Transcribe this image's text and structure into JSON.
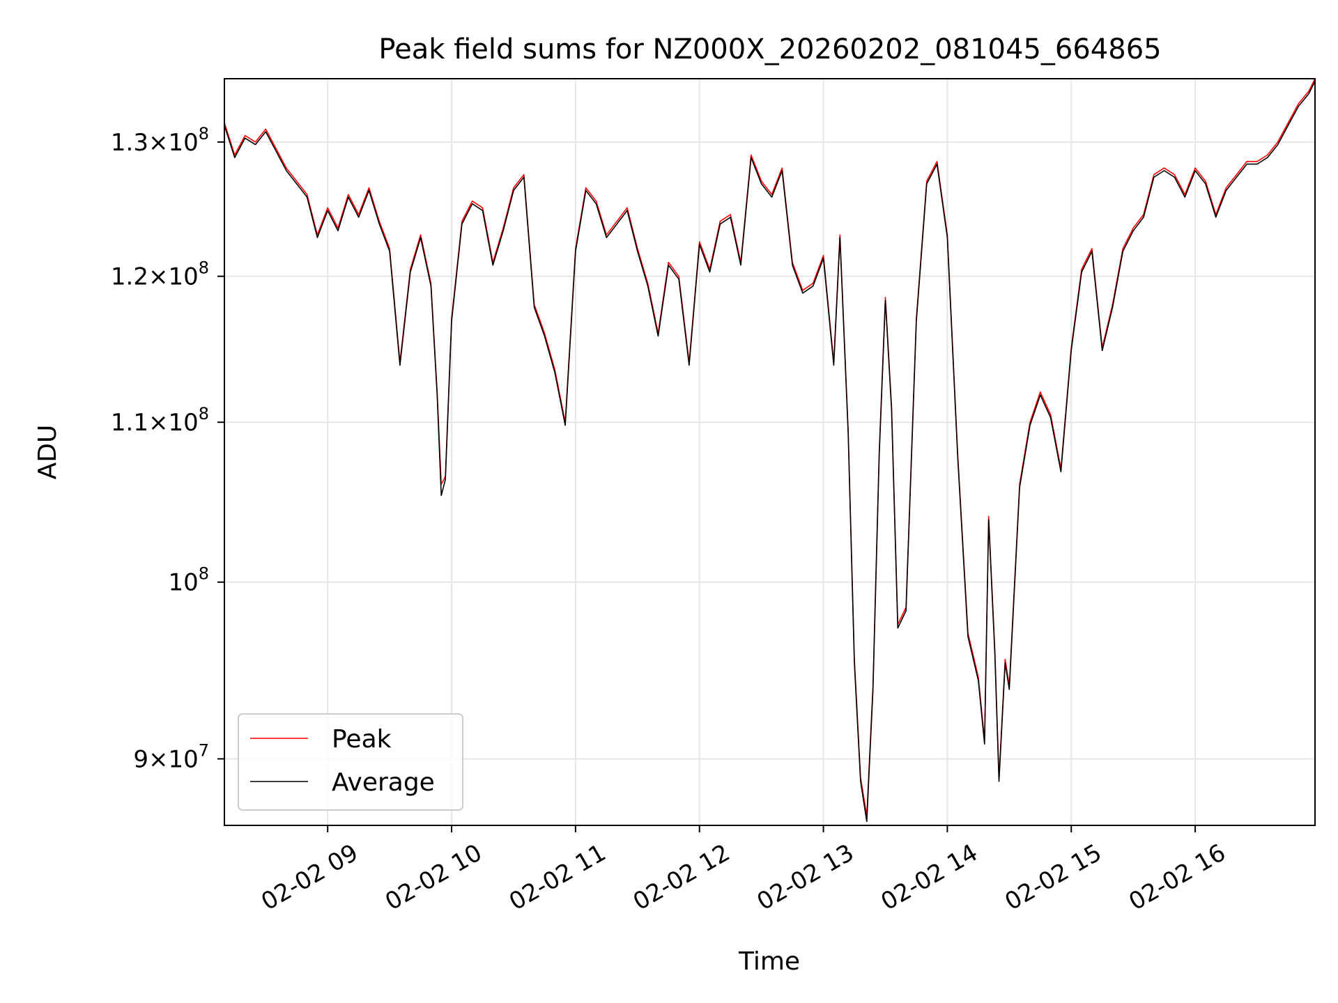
{
  "chart_data": {
    "type": "line",
    "title": "Peak field sums for NZ000X_20260202_081045_664865",
    "xlabel": "Time",
    "ylabel": "ADU",
    "yscale": "log",
    "xlim": [
      "02-02 08:10",
      "02-02 16:58"
    ],
    "ylim": [
      86500000,
      135000000
    ],
    "xticks": [
      "02-02 09",
      "02-02 10",
      "02-02 11",
      "02-02 12",
      "02-02 13",
      "02-02 14",
      "02-02 15",
      "02-02 16"
    ],
    "yticks": [
      {
        "value": 90000000,
        "mantissa": "9",
        "exponent": "7"
      },
      {
        "value": 100000000,
        "mantissa": "",
        "exponent": "8"
      },
      {
        "value": 110000000,
        "mantissa": "1.1",
        "exponent": "8"
      },
      {
        "value": 120000000,
        "mantissa": "1.2",
        "exponent": "8"
      },
      {
        "value": 130000000,
        "mantissa": "1.3",
        "exponent": "8"
      }
    ],
    "grid": true,
    "legend": {
      "position": "lower-left"
    },
    "colors": {
      "Peak": "#ff0000",
      "Average": "#000000"
    },
    "series": [
      {
        "name": "Peak",
        "color": "#ff0000",
        "x": [
          "02-02 08:10",
          "02-02 08:15",
          "02-02 08:20",
          "02-02 08:25",
          "02-02 08:30",
          "02-02 08:35",
          "02-02 08:40",
          "02-02 08:45",
          "02-02 08:50",
          "02-02 08:55",
          "02-02 09:00",
          "02-02 09:05",
          "02-02 09:10",
          "02-02 09:15",
          "02-02 09:20",
          "02-02 09:25",
          "02-02 09:30",
          "02-02 09:35",
          "02-02 09:40",
          "02-02 09:45",
          "02-02 09:50",
          "02-02 09:53",
          "02-02 09:55",
          "02-02 09:57",
          "02-02 10:00",
          "02-02 10:05",
          "02-02 10:10",
          "02-02 10:15",
          "02-02 10:20",
          "02-02 10:25",
          "02-02 10:30",
          "02-02 10:35",
          "02-02 10:40",
          "02-02 10:45",
          "02-02 10:50",
          "02-02 10:55",
          "02-02 11:00",
          "02-02 11:05",
          "02-02 11:10",
          "02-02 11:15",
          "02-02 11:20",
          "02-02 11:25",
          "02-02 11:30",
          "02-02 11:35",
          "02-02 11:40",
          "02-02 11:45",
          "02-02 11:50",
          "02-02 11:55",
          "02-02 12:00",
          "02-02 12:05",
          "02-02 12:10",
          "02-02 12:15",
          "02-02 12:20",
          "02-02 12:25",
          "02-02 12:30",
          "02-02 12:35",
          "02-02 12:40",
          "02-02 12:45",
          "02-02 12:50",
          "02-02 12:55",
          "02-02 13:00",
          "02-02 13:05",
          "02-02 13:08",
          "02-02 13:12",
          "02-02 13:15",
          "02-02 13:18",
          "02-02 13:21",
          "02-02 13:24",
          "02-02 13:27",
          "02-02 13:30",
          "02-02 13:33",
          "02-02 13:36",
          "02-02 13:40",
          "02-02 13:45",
          "02-02 13:50",
          "02-02 13:55",
          "02-02 14:00",
          "02-02 14:05",
          "02-02 14:10",
          "02-02 14:15",
          "02-02 14:18",
          "02-02 14:20",
          "02-02 14:23",
          "02-02 14:25",
          "02-02 14:28",
          "02-02 14:30",
          "02-02 14:35",
          "02-02 14:40",
          "02-02 14:45",
          "02-02 14:50",
          "02-02 14:55",
          "02-02 15:00",
          "02-02 15:05",
          "02-02 15:10",
          "02-02 15:15",
          "02-02 15:20",
          "02-02 15:25",
          "02-02 15:30",
          "02-02 15:35",
          "02-02 15:40",
          "02-02 15:45",
          "02-02 15:50",
          "02-02 15:55",
          "02-02 16:00",
          "02-02 16:05",
          "02-02 16:10",
          "02-02 16:15",
          "02-02 16:20",
          "02-02 16:25",
          "02-02 16:30",
          "02-02 16:35",
          "02-02 16:40",
          "02-02 16:45",
          "02-02 16:50",
          "02-02 16:55",
          "02-02 16:58"
        ],
        "values": [
          131500000,
          129000000,
          130500000,
          130000000,
          131000000,
          129500000,
          128000000,
          127000000,
          126000000,
          123000000,
          125000000,
          123500000,
          126000000,
          124500000,
          126500000,
          124000000,
          122000000,
          114000000,
          120500000,
          123000000,
          119500000,
          112000000,
          106000000,
          106500000,
          117000000,
          124000000,
          125500000,
          125000000,
          121000000,
          123500000,
          126500000,
          127500000,
          118000000,
          116000000,
          113500000,
          110000000,
          122000000,
          126500000,
          125500000,
          123000000,
          124000000,
          125000000,
          122000000,
          119500000,
          116000000,
          121000000,
          120000000,
          114000000,
          122500000,
          120500000,
          124000000,
          124500000,
          121000000,
          129000000,
          127000000,
          126000000,
          128000000,
          121000000,
          119000000,
          119500000,
          121500000,
          114000000,
          123000000,
          109500000,
          95500000,
          89000000,
          87000000,
          94000000,
          108000000,
          118500000,
          111000000,
          97500000,
          98500000,
          117000000,
          127000000,
          128500000,
          123000000,
          108000000,
          97000000,
          94500000,
          91000000,
          104000000,
          96000000,
          89000000,
          95500000,
          94000000,
          106000000,
          110000000,
          112000000,
          110500000,
          107000000,
          115000000,
          120500000,
          122000000,
          115000000,
          118000000,
          122000000,
          123500000,
          124500000,
          127500000,
          128000000,
          127500000,
          126000000,
          128000000,
          127000000,
          124500000,
          126500000,
          127500000,
          128500000,
          128500000,
          129000000,
          130000000,
          131500000,
          133000000,
          134000000,
          135000000
        ]
      },
      {
        "name": "Average",
        "color": "#000000",
        "x": [
          "02-02 08:10",
          "02-02 08:15",
          "02-02 08:20",
          "02-02 08:25",
          "02-02 08:30",
          "02-02 08:35",
          "02-02 08:40",
          "02-02 08:45",
          "02-02 08:50",
          "02-02 08:55",
          "02-02 09:00",
          "02-02 09:05",
          "02-02 09:10",
          "02-02 09:15",
          "02-02 09:20",
          "02-02 09:25",
          "02-02 09:30",
          "02-02 09:35",
          "02-02 09:40",
          "02-02 09:45",
          "02-02 09:50",
          "02-02 09:53",
          "02-02 09:55",
          "02-02 09:57",
          "02-02 10:00",
          "02-02 10:05",
          "02-02 10:10",
          "02-02 10:15",
          "02-02 10:20",
          "02-02 10:25",
          "02-02 10:30",
          "02-02 10:35",
          "02-02 10:40",
          "02-02 10:45",
          "02-02 10:50",
          "02-02 10:55",
          "02-02 11:00",
          "02-02 11:05",
          "02-02 11:10",
          "02-02 11:15",
          "02-02 11:20",
          "02-02 11:25",
          "02-02 11:30",
          "02-02 11:35",
          "02-02 11:40",
          "02-02 11:45",
          "02-02 11:50",
          "02-02 11:55",
          "02-02 12:00",
          "02-02 12:05",
          "02-02 12:10",
          "02-02 12:15",
          "02-02 12:20",
          "02-02 12:25",
          "02-02 12:30",
          "02-02 12:35",
          "02-02 12:40",
          "02-02 12:45",
          "02-02 12:50",
          "02-02 12:55",
          "02-02 13:00",
          "02-02 13:05",
          "02-02 13:08",
          "02-02 13:12",
          "02-02 13:15",
          "02-02 13:18",
          "02-02 13:21",
          "02-02 13:24",
          "02-02 13:27",
          "02-02 13:30",
          "02-02 13:33",
          "02-02 13:36",
          "02-02 13:40",
          "02-02 13:45",
          "02-02 13:50",
          "02-02 13:55",
          "02-02 14:00",
          "02-02 14:05",
          "02-02 14:10",
          "02-02 14:15",
          "02-02 14:18",
          "02-02 14:20",
          "02-02 14:23",
          "02-02 14:25",
          "02-02 14:28",
          "02-02 14:30",
          "02-02 14:35",
          "02-02 14:40",
          "02-02 14:45",
          "02-02 14:50",
          "02-02 14:55",
          "02-02 15:00",
          "02-02 15:05",
          "02-02 15:10",
          "02-02 15:15",
          "02-02 15:20",
          "02-02 15:25",
          "02-02 15:30",
          "02-02 15:35",
          "02-02 15:40",
          "02-02 15:45",
          "02-02 15:50",
          "02-02 15:55",
          "02-02 16:00",
          "02-02 16:05",
          "02-02 16:10",
          "02-02 16:15",
          "02-02 16:20",
          "02-02 16:25",
          "02-02 16:30",
          "02-02 16:35",
          "02-02 16:40",
          "02-02 16:45",
          "02-02 16:50",
          "02-02 16:55",
          "02-02 16:58"
        ],
        "values": [
          131300000,
          128800000,
          130300000,
          129800000,
          130800000,
          129300000,
          127800000,
          126800000,
          125800000,
          122800000,
          124800000,
          123300000,
          125800000,
          124300000,
          126300000,
          123800000,
          121800000,
          113800000,
          120300000,
          122800000,
          119300000,
          111800000,
          105300000,
          106300000,
          116800000,
          123800000,
          125300000,
          124800000,
          120800000,
          123300000,
          126300000,
          127300000,
          117800000,
          115800000,
          113300000,
          109800000,
          121800000,
          126300000,
          125300000,
          122800000,
          123800000,
          124800000,
          121800000,
          119300000,
          115800000,
          120800000,
          119800000,
          113800000,
          122300000,
          120300000,
          123800000,
          124300000,
          120800000,
          128800000,
          126800000,
          125800000,
          127800000,
          120800000,
          118800000,
          119300000,
          121300000,
          113800000,
          122800000,
          109300000,
          95300000,
          88800000,
          86700000,
          93800000,
          107800000,
          118300000,
          110800000,
          97300000,
          98300000,
          116800000,
          126800000,
          128300000,
          122800000,
          107800000,
          96800000,
          94300000,
          90800000,
          103800000,
          95800000,
          88800000,
          95300000,
          93800000,
          105800000,
          109800000,
          111800000,
          110300000,
          106800000,
          114800000,
          120300000,
          121800000,
          114800000,
          117800000,
          121800000,
          123300000,
          124300000,
          127300000,
          127800000,
          127300000,
          125800000,
          127800000,
          126800000,
          124300000,
          126300000,
          127300000,
          128300000,
          128300000,
          128800000,
          129800000,
          131300000,
          132800000,
          133800000,
          134800000
        ]
      }
    ]
  }
}
